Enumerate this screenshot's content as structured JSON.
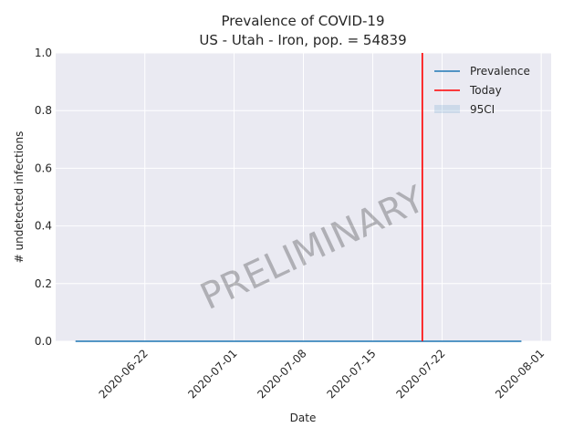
{
  "chart_data": {
    "type": "line",
    "title": "Prevalence of COVID-19",
    "subtitle": "US - Utah - Iron, pop. = 54839",
    "xlabel": "Date",
    "ylabel": "# undetected infections",
    "x_range": [
      "2020-06-13",
      "2020-08-02"
    ],
    "ylim": [
      0,
      1.0
    ],
    "x_ticks": [
      "2020-06-22",
      "2020-07-01",
      "2020-07-08",
      "2020-07-15",
      "2020-07-22",
      "2020-08-01"
    ],
    "y_ticks": [
      "0.0",
      "0.2",
      "0.4",
      "0.6",
      "0.8",
      "1.0"
    ],
    "y_tick_values": [
      0,
      0.2,
      0.4,
      0.6,
      0.8,
      1.0
    ],
    "grid": true,
    "legend_position": "top-right",
    "series": [
      {
        "name": "Prevalence",
        "color": "#1f77b4",
        "x": [
          "2020-06-15",
          "2020-07-30"
        ],
        "y": [
          0,
          0
        ]
      }
    ],
    "band": {
      "name": "95CI",
      "color": "#1f77b4",
      "x": [
        "2020-06-15",
        "2020-07-30"
      ],
      "lower": [
        0,
        0
      ],
      "upper": [
        0,
        0
      ]
    },
    "today": {
      "name": "Today",
      "date": "2020-07-20",
      "color": "#ff0000"
    },
    "watermark": "PRELIMINARY",
    "colors": {
      "plot_background": "#eaeaf2",
      "grid": "#ffffff",
      "text": "#262626"
    }
  }
}
